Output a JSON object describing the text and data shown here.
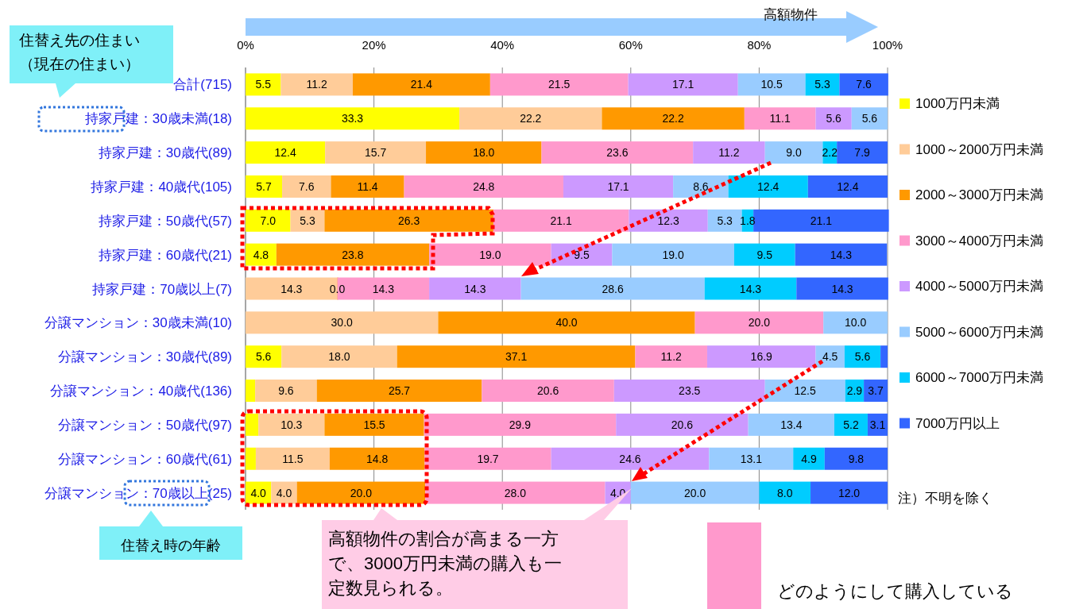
{
  "chart_data": {
    "type": "bar",
    "orientation": "horizontal",
    "stacked": true,
    "legend": "right",
    "grid": "x",
    "categories": [
      "合計(715)",
      "持家戸建：30歳未満(18)",
      "持家戸建：30歳代(89)",
      "持家戸建：40歳代(105)",
      "持家戸建：50歳代(57)",
      "持家戸建：60歳代(21)",
      "持家戸建：70歳以上(7)",
      "分譲マンション：30歳未満(10)",
      "分譲マンション：30歳代(89)",
      "分譲マンション：40歳代(136)",
      "分譲マンション：50歳代(97)",
      "分譲マンション：60歳代(61)",
      "分譲マンション：70歳以上(25)"
    ],
    "xlim": [
      0,
      100
    ],
    "xticks": [
      {
        "value": 0,
        "label": "0%"
      },
      {
        "value": 20,
        "label": "20%"
      },
      {
        "value": 40,
        "label": "40%"
      },
      {
        "value": 60,
        "label": "60%"
      },
      {
        "value": 80,
        "label": "80%"
      },
      {
        "value": 100,
        "label": "100%"
      }
    ],
    "series": [
      {
        "name": "1000万円未満",
        "color": "#ffff00",
        "values": [
          5.5,
          33.3,
          12.4,
          5.7,
          7.0,
          4.8,
          null,
          null,
          5.6,
          1.5,
          2.0,
          1.6,
          4.0
        ],
        "value_labels": [
          "5.5",
          "33.3",
          "12.4",
          "5.7",
          "7.0",
          "4.8",
          null,
          null,
          "5.6",
          null,
          null,
          null,
          "4.0"
        ]
      },
      {
        "name": "1000～2000万円未満",
        "color": "#ffcc99",
        "values": [
          11.2,
          22.2,
          15.7,
          7.6,
          5.3,
          null,
          14.3,
          30.0,
          18.0,
          9.6,
          10.3,
          11.5,
          4.0
        ],
        "value_labels": [
          "11.2",
          "22.2",
          "15.7",
          "7.6",
          "5.3",
          null,
          "14.3",
          "30.0",
          "18.0",
          "9.6",
          "10.3",
          "11.5",
          "4.0"
        ]
      },
      {
        "name": "2000～3000万円未満",
        "color": "#ff9900",
        "values": [
          21.4,
          22.2,
          18.0,
          11.4,
          26.3,
          23.8,
          0.0,
          40.0,
          37.1,
          25.7,
          15.5,
          14.8,
          20.0
        ],
        "value_labels": [
          "21.4",
          "22.2",
          "18.0",
          "11.4",
          "26.3",
          "23.8",
          "0.0",
          "40.0",
          "37.1",
          "25.7",
          "15.5",
          "14.8",
          "20.0"
        ]
      },
      {
        "name": "3000～4000万円未満",
        "color": "#ff99cc",
        "values": [
          21.5,
          11.1,
          23.6,
          24.8,
          21.1,
          19.0,
          14.3,
          20.0,
          11.2,
          20.6,
          29.9,
          19.7,
          28.0
        ],
        "value_labels": [
          "21.5",
          "11.1",
          "23.6",
          "24.8",
          "21.1",
          "19.0",
          "14.3",
          "20.0",
          "11.2",
          "20.6",
          "29.9",
          "19.7",
          "28.0"
        ]
      },
      {
        "name": "4000～5000万円未満",
        "color": "#cc99ff",
        "values": [
          17.1,
          5.6,
          11.2,
          17.1,
          12.3,
          9.5,
          14.3,
          null,
          16.9,
          23.5,
          20.6,
          24.6,
          4.0
        ],
        "value_labels": [
          "17.1",
          "5.6",
          "11.2",
          "17.1",
          "12.3",
          "9.5",
          "14.3",
          null,
          "16.9",
          "23.5",
          "20.6",
          "24.6",
          "4.0"
        ]
      },
      {
        "name": "5000～6000万円未満",
        "color": "#99ccff",
        "values": [
          10.5,
          5.6,
          9.0,
          8.6,
          5.3,
          19.0,
          28.6,
          10.0,
          4.5,
          12.5,
          13.4,
          13.1,
          20.0
        ],
        "value_labels": [
          "10.5",
          "5.6",
          "9.0",
          "8.6",
          "5.3",
          "19.0",
          "28.6",
          "10.0",
          "4.5",
          "12.5",
          "13.4",
          "13.1",
          "20.0"
        ]
      },
      {
        "name": "6000～7000万円未満",
        "color": "#00ccff",
        "values": [
          5.3,
          null,
          2.2,
          12.4,
          1.8,
          9.5,
          14.3,
          null,
          5.6,
          2.9,
          5.2,
          4.9,
          8.0
        ],
        "value_labels": [
          "5.3",
          null,
          "2.2",
          "12.4",
          "1.8",
          "9.5",
          "14.3",
          null,
          "5.6",
          "2.9",
          "5.2",
          "4.9",
          "8.0"
        ]
      },
      {
        "name": "7000万円以上",
        "color": "#3366ff",
        "values": [
          7.6,
          null,
          7.9,
          12.4,
          21.1,
          14.3,
          14.3,
          null,
          1.1,
          3.7,
          3.1,
          9.8,
          12.0
        ],
        "value_labels": [
          "7.6",
          null,
          "7.9",
          "12.4",
          "21.1",
          "14.3",
          "14.3",
          null,
          null,
          "3.7",
          "3.1",
          "9.8",
          "12.0"
        ]
      }
    ],
    "annotations": [
      "高額物件",
      "住替え先の住まい（現在の住まい）",
      "住替え時の年齢",
      "注）不明を除く",
      "高額物件の割合が高まる一方で、3000万円未満の購入も一定数見られる。",
      "どのようにして購入している"
    ]
  }
}
